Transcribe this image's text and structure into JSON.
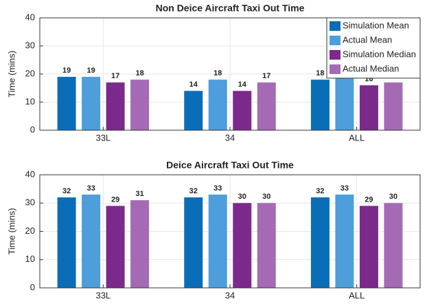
{
  "chart_data": [
    {
      "type": "bar",
      "title": "Non Deice Aircraft Taxi Out Time",
      "ylabel": "Time (mins)",
      "categories": [
        "33L",
        "34",
        "ALL"
      ],
      "series": [
        {
          "name": "Simulation Mean",
          "color": "#0b6db8",
          "values": [
            19,
            14,
            18
          ]
        },
        {
          "name": "Actual Mean",
          "color": "#4d9edb",
          "values": [
            19,
            18,
            19
          ]
        },
        {
          "name": "Simulation Median",
          "color": "#7b2a8c",
          "values": [
            17,
            14,
            16
          ]
        },
        {
          "name": "Actual Median",
          "color": "#a46bb4",
          "values": [
            18,
            17,
            17
          ]
        }
      ],
      "ylim": [
        0,
        40
      ],
      "yticks": [
        0,
        10,
        20,
        30,
        40
      ],
      "grid": true,
      "legend": "upper right"
    },
    {
      "type": "bar",
      "title": "Deice Aircraft Taxi Out Time",
      "ylabel": "Time (mins)",
      "categories": [
        "33L",
        "34",
        "ALL"
      ],
      "series": [
        {
          "name": "Simulation Mean",
          "color": "#0b6db8",
          "values": [
            32,
            32,
            32
          ]
        },
        {
          "name": "Actual Mean",
          "color": "#4d9edb",
          "values": [
            33,
            33,
            33
          ]
        },
        {
          "name": "Simulation Median",
          "color": "#7b2a8c",
          "values": [
            29,
            30,
            29
          ]
        },
        {
          "name": "Actual Median",
          "color": "#a46bb4",
          "values": [
            31,
            30,
            30
          ]
        }
      ],
      "ylim": [
        0,
        40
      ],
      "yticks": [
        0,
        10,
        20,
        30,
        40
      ],
      "grid": true
    }
  ]
}
